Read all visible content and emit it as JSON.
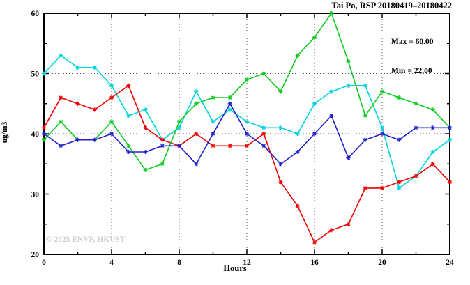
{
  "header": {
    "title": "Tai Po, RSP 20180419–20180422"
  },
  "legend": {
    "max_label": "Max = 60.00",
    "min_label": "Min = 22.00"
  },
  "watermark": "© 2025 ENVF, HKUST",
  "chart_data": {
    "type": "line",
    "title": "Tai Po, RSP 20180419–20180422",
    "xlabel": "Hours",
    "ylabel": "ug/m3",
    "xlim": [
      0,
      24
    ],
    "ylim": [
      20,
      60
    ],
    "xticks_major": [
      0,
      4,
      8,
      12,
      16,
      20,
      24
    ],
    "xticks_minor": [
      2,
      6,
      10,
      14,
      18,
      22
    ],
    "yticks_major": [
      20,
      30,
      40,
      50,
      60
    ],
    "yticks_minor": [
      25,
      35,
      45,
      55
    ],
    "grid_x": [
      4,
      8,
      12,
      16,
      20
    ],
    "grid_y": [
      30,
      40,
      50
    ],
    "x": [
      0,
      1,
      2,
      3,
      4,
      5,
      6,
      7,
      8,
      9,
      10,
      11,
      12,
      13,
      14,
      15,
      16,
      17,
      18,
      19,
      20,
      21,
      22,
      23,
      24
    ],
    "series": [
      {
        "name": "series-cyan",
        "color": "#00d2e0",
        "values": [
          50,
          53,
          51,
          51,
          48,
          43,
          44,
          39,
          41,
          47,
          42,
          44,
          42,
          41,
          41,
          40,
          45,
          47,
          48,
          48,
          41,
          31,
          33,
          37,
          39
        ]
      },
      {
        "name": "series-red",
        "color": "#ee0000",
        "values": [
          41,
          46,
          45,
          44,
          46,
          48,
          41,
          39,
          38,
          40,
          38,
          38,
          38,
          40,
          32,
          28,
          22,
          24,
          25,
          31,
          31,
          32,
          33,
          35,
          32
        ]
      },
      {
        "name": "series-green",
        "color": "#10cc22",
        "values": [
          39,
          42,
          39,
          39,
          42,
          38,
          34,
          35,
          42,
          45,
          46,
          46,
          49,
          50,
          47,
          53,
          56,
          60,
          52,
          43,
          47,
          46,
          45,
          44,
          41
        ]
      },
      {
        "name": "series-blue",
        "color": "#2222cc",
        "values": [
          40,
          38,
          39,
          39,
          40,
          37,
          37,
          38,
          38,
          35,
          40,
          45,
          40,
          38,
          35,
          37,
          40,
          43,
          36,
          39,
          40,
          39,
          41,
          41,
          41
        ]
      }
    ],
    "annotations": {
      "max": 60.0,
      "min": 22.0
    },
    "legend_position": "top-right-inside",
    "grid_style": "dotted"
  }
}
